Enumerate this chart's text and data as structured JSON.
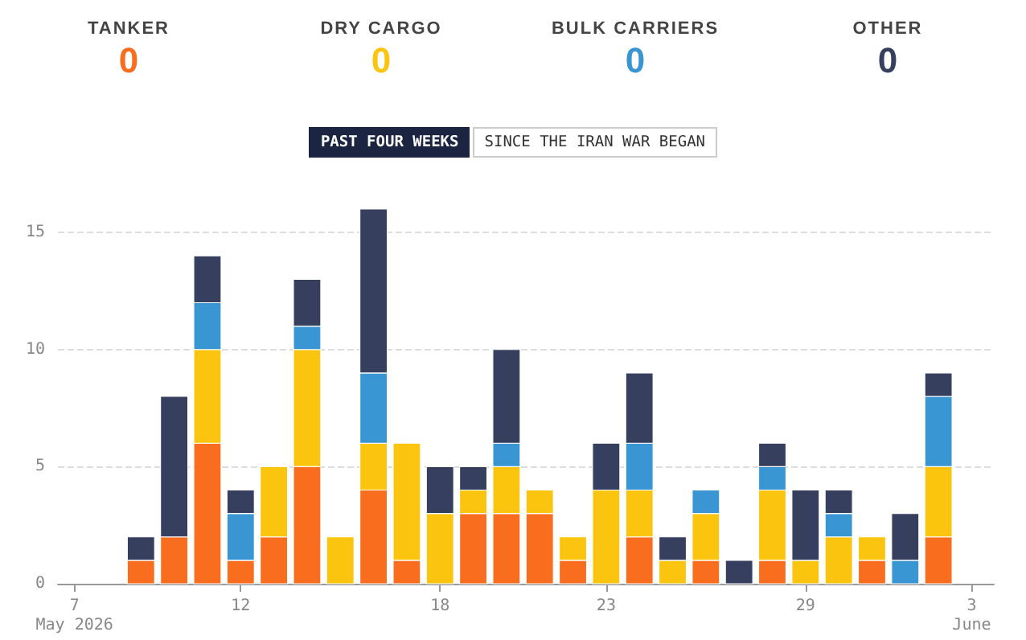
{
  "chart_data": [
    {
      "type": "other",
      "categories": [
        "TANKER",
        "DRY CARGO",
        "BULK CARRIERS",
        "OTHER"
      ],
      "values": [
        0,
        0,
        0,
        0
      ],
      "data_labels": true,
      "colors": [
        "#f96d1f",
        "#fbc50f",
        "#3a95d3",
        "#363f5e"
      ]
    },
    {
      "type": "bar",
      "stacked": true,
      "annotations": [
        "PAST FOUR WEEKS",
        "SINCE THE IRAN WAR BEGAN"
      ],
      "x": [
        "2026-05-09",
        "2026-05-10",
        "2026-05-11",
        "2026-05-12",
        "2026-05-13",
        "2026-05-14",
        "2026-05-15",
        "2026-05-16",
        "2026-05-17",
        "2026-05-18",
        "2026-05-19",
        "2026-05-20",
        "2026-05-21",
        "2026-05-22",
        "2026-05-23",
        "2026-05-24",
        "2026-05-25",
        "2026-05-26",
        "2026-05-27",
        "2026-05-28",
        "2026-05-29",
        "2026-05-30",
        "2026-05-31",
        "2026-06-01",
        "2026-06-02"
      ],
      "series": [
        {
          "color": "#f96d1f",
          "values": [
            1,
            2,
            6,
            1,
            2,
            5,
            0,
            4,
            1,
            0,
            3,
            3,
            3,
            1,
            0,
            2,
            0,
            1,
            0,
            1,
            0,
            0,
            1,
            0,
            2
          ]
        },
        {
          "color": "#fbc50f",
          "values": [
            0,
            0,
            4,
            0,
            3,
            5,
            2,
            2,
            5,
            3,
            1,
            2,
            1,
            1,
            4,
            2,
            1,
            2,
            0,
            3,
            1,
            2,
            1,
            0,
            3
          ]
        },
        {
          "color": "#3a95d3",
          "values": [
            0,
            0,
            2,
            2,
            0,
            1,
            0,
            3,
            0,
            0,
            0,
            1,
            0,
            0,
            0,
            2,
            0,
            1,
            0,
            1,
            0,
            1,
            0,
            1,
            3
          ]
        },
        {
          "color": "#363f5e",
          "values": [
            1,
            6,
            2,
            1,
            0,
            2,
            0,
            7,
            0,
            2,
            1,
            4,
            0,
            0,
            2,
            3,
            1,
            0,
            1,
            1,
            3,
            1,
            0,
            2,
            1
          ]
        }
      ],
      "xlim": [
        "2026-05-06T12:00",
        "2026-06-03T16:00"
      ],
      "xticks": [
        {
          "value": "2026-05-07",
          "label": "7 May 2026"
        },
        {
          "value": "2026-05-12",
          "label": "12"
        },
        {
          "value": "2026-05-18",
          "label": "18"
        },
        {
          "value": "2026-05-23",
          "label": "23"
        },
        {
          "value": "2026-05-29",
          "label": "29"
        },
        {
          "value": "2026-06-03",
          "label": "3 June"
        }
      ],
      "ylim": [
        0,
        16
      ],
      "yticks": [
        0,
        5,
        10,
        15
      ],
      "grid": "y"
    }
  ]
}
